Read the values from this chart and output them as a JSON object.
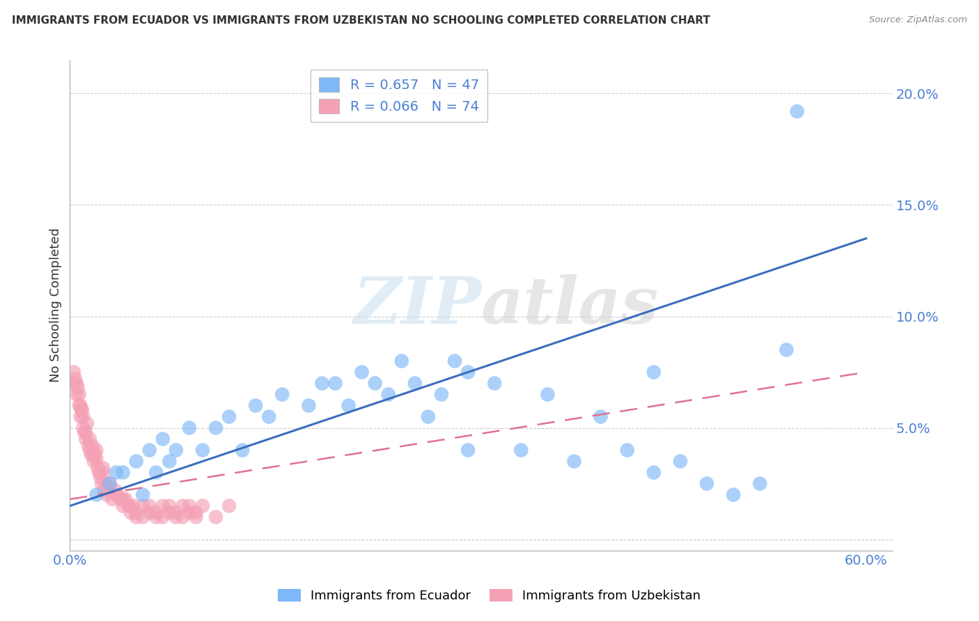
{
  "title": "IMMIGRANTS FROM ECUADOR VS IMMIGRANTS FROM UZBEKISTAN NO SCHOOLING COMPLETED CORRELATION CHART",
  "source": "Source: ZipAtlas.com",
  "ylabel": "No Schooling Completed",
  "ecuador_label": "Immigrants from Ecuador",
  "uzbekistan_label": "Immigrants from Uzbekistan",
  "ecuador_R": "0.657",
  "ecuador_N": "47",
  "uzbekistan_R": "0.066",
  "uzbekistan_N": "74",
  "watermark_text": "ZIPatlas",
  "ecuador_scatter_color": "#7eb8f7",
  "uzbekistan_scatter_color": "#f4a0b5",
  "ecuador_line_color": "#3a6dbf",
  "uzbekistan_line_color": "#e07090",
  "xlim": [
    0.0,
    0.62
  ],
  "ylim": [
    -0.005,
    0.215
  ],
  "ytick_positions": [
    0.0,
    0.05,
    0.1,
    0.15,
    0.2
  ],
  "ytick_labels": [
    "",
    "5.0%",
    "10.0%",
    "15.0%",
    "20.0%"
  ],
  "xtick_positions": [
    0.0,
    0.6
  ],
  "xtick_labels": [
    "0.0%",
    "60.0%"
  ],
  "ecuador_line_x": [
    0.0,
    0.6
  ],
  "ecuador_line_y": [
    0.015,
    0.135
  ],
  "uzbekistan_line_x": [
    0.0,
    0.6
  ],
  "uzbekistan_line_y": [
    0.018,
    0.075
  ],
  "ecuador_x": [
    0.02,
    0.03,
    0.035,
    0.04,
    0.05,
    0.055,
    0.06,
    0.065,
    0.07,
    0.075,
    0.08,
    0.09,
    0.1,
    0.11,
    0.12,
    0.13,
    0.14,
    0.15,
    0.16,
    0.18,
    0.19,
    0.2,
    0.21,
    0.22,
    0.23,
    0.24,
    0.25,
    0.26,
    0.27,
    0.28,
    0.29,
    0.3,
    0.32,
    0.34,
    0.36,
    0.38,
    0.4,
    0.42,
    0.44,
    0.46,
    0.48,
    0.5,
    0.52,
    0.54,
    0.44,
    0.3,
    0.548
  ],
  "ecuador_y": [
    0.02,
    0.025,
    0.03,
    0.03,
    0.035,
    0.02,
    0.04,
    0.03,
    0.045,
    0.035,
    0.04,
    0.05,
    0.04,
    0.05,
    0.055,
    0.04,
    0.06,
    0.055,
    0.065,
    0.06,
    0.07,
    0.07,
    0.06,
    0.075,
    0.07,
    0.065,
    0.08,
    0.07,
    0.055,
    0.065,
    0.08,
    0.075,
    0.07,
    0.04,
    0.065,
    0.035,
    0.055,
    0.04,
    0.03,
    0.035,
    0.025,
    0.02,
    0.025,
    0.085,
    0.075,
    0.04,
    0.192
  ],
  "uzbekistan_x": [
    0.005,
    0.007,
    0.008,
    0.009,
    0.01,
    0.011,
    0.012,
    0.013,
    0.014,
    0.015,
    0.016,
    0.017,
    0.018,
    0.019,
    0.02,
    0.021,
    0.022,
    0.023,
    0.024,
    0.025,
    0.026,
    0.027,
    0.028,
    0.03,
    0.032,
    0.034,
    0.036,
    0.038,
    0.04,
    0.042,
    0.044,
    0.046,
    0.048,
    0.05,
    0.055,
    0.06,
    0.065,
    0.07,
    0.075,
    0.08,
    0.085,
    0.09,
    0.095,
    0.1,
    0.003,
    0.006,
    0.004,
    0.008,
    0.01,
    0.012,
    0.015,
    0.018,
    0.02,
    0.025,
    0.03,
    0.035,
    0.04,
    0.045,
    0.05,
    0.055,
    0.06,
    0.065,
    0.07,
    0.075,
    0.08,
    0.085,
    0.09,
    0.095,
    0.003,
    0.005,
    0.007,
    0.009,
    0.11,
    0.12
  ],
  "uzbekistan_y": [
    0.065,
    0.06,
    0.055,
    0.058,
    0.05,
    0.048,
    0.045,
    0.052,
    0.042,
    0.04,
    0.038,
    0.042,
    0.035,
    0.038,
    0.036,
    0.032,
    0.03,
    0.028,
    0.025,
    0.03,
    0.022,
    0.025,
    0.02,
    0.022,
    0.018,
    0.022,
    0.02,
    0.018,
    0.015,
    0.018,
    0.015,
    0.012,
    0.015,
    0.01,
    0.015,
    0.012,
    0.01,
    0.015,
    0.012,
    0.01,
    0.015,
    0.012,
    0.01,
    0.015,
    0.07,
    0.068,
    0.072,
    0.06,
    0.055,
    0.048,
    0.045,
    0.038,
    0.04,
    0.032,
    0.025,
    0.02,
    0.018,
    0.015,
    0.012,
    0.01,
    0.015,
    0.012,
    0.01,
    0.015,
    0.012,
    0.01,
    0.015,
    0.012,
    0.075,
    0.07,
    0.065,
    0.058,
    0.01,
    0.015
  ]
}
